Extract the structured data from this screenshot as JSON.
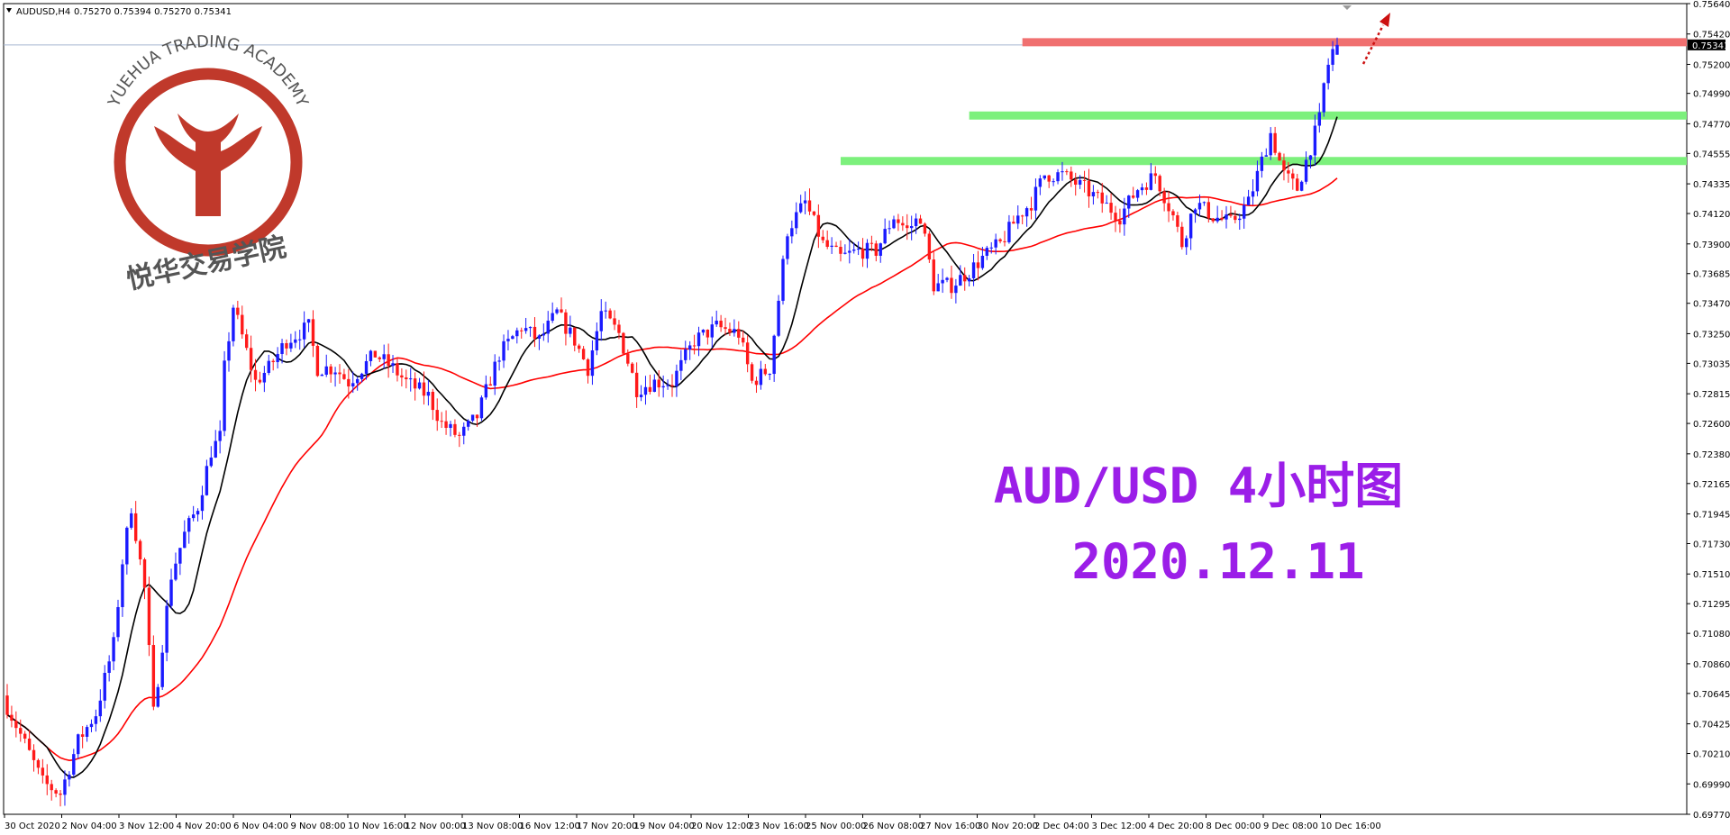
{
  "header": {
    "symbol": "AUDUSD,H4",
    "ohlc": "0.75270 0.75394 0.75270 0.75341"
  },
  "watermark": {
    "academy_en": "YUEHUA TRADING ACADEMY",
    "academy_cn": "悦华交易学院",
    "brand_color": "#c0392b"
  },
  "overlay": {
    "title": "AUD/USD 4小时图",
    "date": "2020.12.11",
    "color": "#9b1ee8"
  },
  "colors": {
    "bull": "#1a1aff",
    "bear": "#ff1a1a",
    "ma_fast": "#000000",
    "ma_slow": "#ff0000",
    "resistance": "#f07070",
    "support": "#7cf07c",
    "current_price_bg": "#000000"
  },
  "chart_data": {
    "type": "candlestick",
    "ylim": [
      0.6977,
      0.7564
    ],
    "y_ticks": [
      "0.75640",
      "0.75420",
      "0.75341",
      "0.75200",
      "0.74990",
      "0.74770",
      "0.74555",
      "0.74335",
      "0.74120",
      "0.73900",
      "0.73685",
      "0.73470",
      "0.73250",
      "0.73035",
      "0.72815",
      "0.72600",
      "0.72380",
      "0.72165",
      "0.71945",
      "0.71730",
      "0.71510",
      "0.71295",
      "0.71080",
      "0.70860",
      "0.70645",
      "0.70425",
      "0.70210",
      "0.69990",
      "0.69770"
    ],
    "current_price": "0.75341",
    "x_ticks": [
      "30 Oct 2020",
      "2 Nov 04:00",
      "3 Nov 12:00",
      "4 Nov 20:00",
      "6 Nov 04:00",
      "9 Nov 08:00",
      "10 Nov 16:00",
      "12 Nov 00:00",
      "13 Nov 08:00",
      "16 Nov 12:00",
      "17 Nov 20:00",
      "19 Nov 04:00",
      "20 Nov 12:00",
      "23 Nov 16:00",
      "25 Nov 00:00",
      "26 Nov 08:00",
      "27 Nov 16:00",
      "30 Nov 20:00",
      "2 Dec 04:00",
      "3 Dec 12:00",
      "4 Dec 20:00",
      "8 Dec 00:00",
      "9 Dec 08:00",
      "10 Dec 16:00"
    ],
    "levels": [
      {
        "name": "resistance",
        "price": 0.7536,
        "from_bar": 229
      },
      {
        "name": "support-upper",
        "price": 0.7483,
        "from_bar": 217
      },
      {
        "name": "support-lower",
        "price": 0.745,
        "from_bar": 188
      }
    ],
    "candles": []
  }
}
